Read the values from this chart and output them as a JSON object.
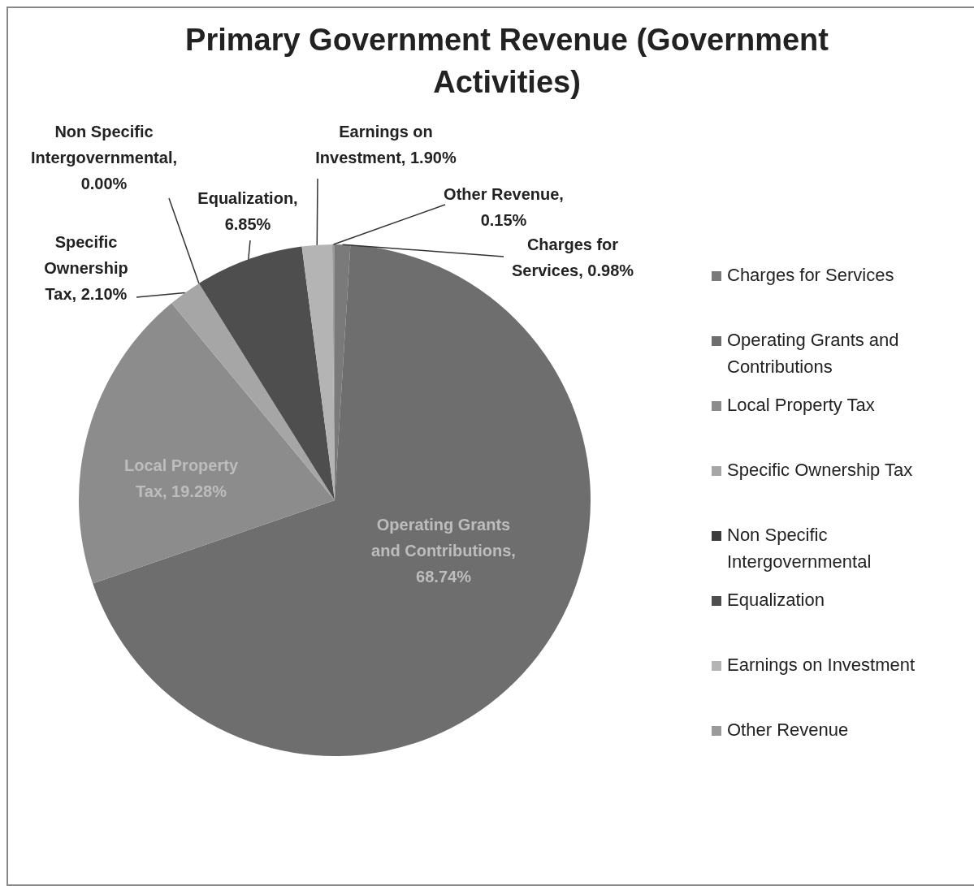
{
  "chart_data": {
    "type": "pie",
    "title": "Primary Government Revenue (Government Activities)",
    "categories": [
      "Charges for Services",
      "Operating Grants and Contributions",
      "Local Property Tax",
      "Specific Ownership Tax",
      "Non Specific Intergovernmental",
      "Equalization",
      "Earnings on Investment",
      "Other Revenue"
    ],
    "values": [
      0.98,
      68.74,
      19.28,
      2.1,
      0.0,
      6.85,
      1.9,
      0.15
    ],
    "colors": [
      "#7a7a7a",
      "#6e6e6e",
      "#8c8c8c",
      "#a6a6a6",
      "#3c3c3c",
      "#4e4e4e",
      "#b4b4b4",
      "#9a9a9a"
    ],
    "value_labels": [
      "Charges for Services, 0.98%",
      "Operating Grants and Contributions, 68.74%",
      "Local Property Tax, 19.28%",
      "Specific Ownership Tax, 2.10%",
      "Non Specific Intergovernmental, 0.00%",
      "Equalization, 6.85%",
      "Earnings on Investment, 1.90%",
      "Other Revenue, 0.15%"
    ],
    "legend": "right"
  }
}
